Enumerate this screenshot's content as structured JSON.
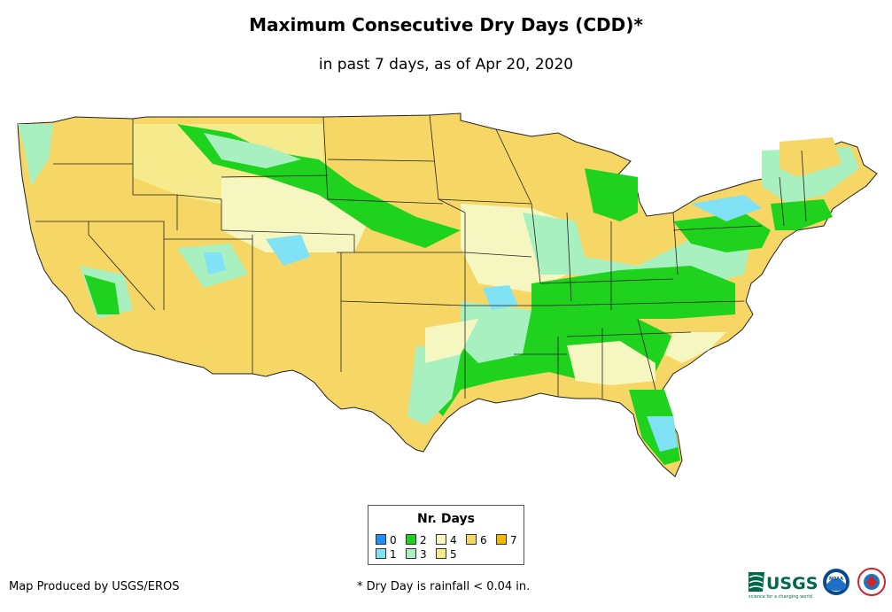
{
  "title": "Maximum Consecutive Dry Days (CDD)*",
  "subtitle": "in past 7 days, as of Apr 20, 2020",
  "legend": {
    "title": "Nr. Days",
    "items": [
      {
        "label": "0",
        "color": "#1e90ff"
      },
      {
        "label": "1",
        "color": "#7fe3f5"
      },
      {
        "label": "2",
        "color": "#1ed21e"
      },
      {
        "label": "3",
        "color": "#a8f0c0"
      },
      {
        "label": "4",
        "color": "#f6f6c0"
      },
      {
        "label": "5",
        "color": "#f5eb8c"
      },
      {
        "label": "6",
        "color": "#f6d664"
      },
      {
        "label": "7",
        "color": "#f2b900"
      }
    ]
  },
  "credit": "Map Produced by USGS/EROS",
  "footnote": "* Dry Day is rainfall < 0.04 in.",
  "logos": {
    "usgs": "USGS",
    "usgs_tagline": "science for a changing world",
    "noaa": "NOAA"
  }
}
